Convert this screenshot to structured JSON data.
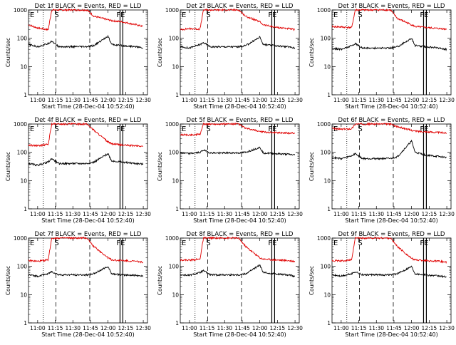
{
  "colors": {
    "events": "#000000",
    "lld": "#e00000",
    "axis": "#000000",
    "background": "#ffffff"
  },
  "chart_data": [
    {
      "type": "line",
      "title": "Det 1f BLACK = Events, RED = LLD",
      "xlabel": "Start Time (28-Dec-04 10:52:40)",
      "ylabel": "Counts/sec",
      "xlim": [
        10.87,
        12.56
      ],
      "ylim": [
        1,
        1000
      ],
      "yscale": "log",
      "x_tick_labels": [
        "11:00",
        "11:15",
        "11:30",
        "11:45",
        "12:00",
        "12:15",
        "12:30"
      ],
      "y_tick_labels": [
        "1",
        "10",
        "100",
        "1000"
      ],
      "markers": {
        "E": 10.87,
        "S": 11.26,
        "FE": 12.17
      },
      "series": [
        {
          "name": "LLD",
          "x": [
            10.87,
            11.0,
            11.15,
            11.2,
            11.3,
            11.7,
            11.8,
            12.0,
            12.05,
            12.2,
            12.4,
            12.5
          ],
          "values": [
            300,
            230,
            200,
            1000,
            1000,
            1000,
            600,
            450,
            420,
            380,
            300,
            260
          ]
        },
        {
          "name": "Events",
          "x": [
            10.87,
            11.0,
            11.15,
            11.2,
            11.3,
            11.7,
            11.8,
            12.0,
            12.05,
            12.2,
            12.4,
            12.5
          ],
          "values": [
            60,
            50,
            65,
            80,
            50,
            50,
            55,
            120,
            60,
            55,
            50,
            45
          ]
        }
      ]
    },
    {
      "type": "line",
      "title": "Det 2f BLACK = Events, RED = LLD",
      "xlabel": "Start Time (28-Dec-04 10:52:40)",
      "ylabel": "Counts/sec",
      "xlim": [
        10.87,
        12.56
      ],
      "ylim": [
        1,
        1000
      ],
      "yscale": "log",
      "x_tick_labels": [
        "11:00",
        "11:15",
        "11:30",
        "11:45",
        "12:00",
        "12:15",
        "12:30"
      ],
      "y_tick_labels": [
        "1",
        "10",
        "100",
        "1000"
      ],
      "markers": {
        "E": 10.87,
        "S": 11.26,
        "FE": 12.17
      },
      "series": [
        {
          "name": "LLD",
          "x": [
            10.87,
            11.0,
            11.15,
            11.2,
            11.3,
            11.7,
            11.8,
            12.0,
            12.05,
            12.2,
            12.4,
            12.5
          ],
          "values": [
            200,
            220,
            210,
            1000,
            1000,
            1000,
            600,
            380,
            300,
            250,
            220,
            200
          ]
        },
        {
          "name": "Events",
          "x": [
            10.87,
            11.0,
            11.15,
            11.2,
            11.3,
            11.7,
            11.8,
            12.0,
            12.05,
            12.2,
            12.4,
            12.5
          ],
          "values": [
            50,
            45,
            60,
            70,
            50,
            50,
            55,
            110,
            60,
            55,
            50,
            45
          ]
        }
      ]
    },
    {
      "type": "line",
      "title": "Det 3f BLACK = Events, RED = LLD",
      "xlabel": "Start Time (28-Dec-04 10:52:40)",
      "ylabel": "Counts/sec",
      "xlim": [
        10.87,
        12.56
      ],
      "ylim": [
        1,
        1000
      ],
      "yscale": "log",
      "x_tick_labels": [
        "11:00",
        "11:15",
        "11:30",
        "11:45",
        "12:00",
        "12:15",
        "12:30"
      ],
      "y_tick_labels": [
        "1",
        "10",
        "100",
        "1000"
      ],
      "markers": {
        "E": 10.87,
        "S": 11.26,
        "FE": 12.17
      },
      "series": [
        {
          "name": "LLD",
          "x": [
            10.87,
            11.0,
            11.15,
            11.2,
            11.3,
            11.7,
            11.8,
            12.0,
            12.05,
            12.2,
            12.4,
            12.5
          ],
          "values": [
            260,
            250,
            240,
            1000,
            1000,
            1000,
            500,
            300,
            260,
            240,
            220,
            210
          ]
        },
        {
          "name": "Events",
          "x": [
            10.87,
            11.0,
            11.15,
            11.2,
            11.3,
            11.7,
            11.8,
            12.0,
            12.05,
            12.2,
            12.4,
            12.5
          ],
          "values": [
            45,
            40,
            55,
            65,
            45,
            45,
            50,
            100,
            55,
            50,
            45,
            40
          ]
        }
      ]
    },
    {
      "type": "line",
      "title": "Det 4f BLACK = Events, RED = LLD",
      "xlabel": "Start Time (28-Dec-04 10:52:40)",
      "ylabel": "Counts/sec",
      "xlim": [
        10.87,
        12.56
      ],
      "ylim": [
        1,
        1000
      ],
      "yscale": "log",
      "x_tick_labels": [
        "11:00",
        "11:15",
        "11:30",
        "11:45",
        "12:00",
        "12:15",
        "12:30"
      ],
      "y_tick_labels": [
        "1",
        "10",
        "100",
        "1000"
      ],
      "markers": {
        "E": 10.87,
        "S": 11.26,
        "FE": 12.17
      },
      "series": [
        {
          "name": "LLD",
          "x": [
            10.87,
            11.0,
            11.15,
            11.2,
            11.3,
            11.7,
            11.8,
            12.0,
            12.05,
            12.2,
            12.4,
            12.5
          ],
          "values": [
            180,
            170,
            190,
            1000,
            1000,
            1000,
            600,
            230,
            200,
            180,
            170,
            160
          ]
        },
        {
          "name": "Events",
          "x": [
            10.87,
            11.0,
            11.15,
            11.2,
            11.3,
            11.7,
            11.8,
            12.0,
            12.05,
            12.2,
            12.4,
            12.5
          ],
          "values": [
            40,
            35,
            45,
            60,
            40,
            40,
            45,
            90,
            50,
            45,
            40,
            38
          ]
        }
      ]
    },
    {
      "type": "line",
      "title": "Det 5f BLACK = Events, RED = LLD",
      "xlabel": "Start Time (28-Dec-04 10:52:40)",
      "ylabel": "Counts/sec",
      "xlim": [
        10.87,
        12.56
      ],
      "ylim": [
        1,
        1000
      ],
      "yscale": "log",
      "x_tick_labels": [
        "11:00",
        "11:15",
        "11:30",
        "11:45",
        "12:00",
        "12:15",
        "12:30"
      ],
      "y_tick_labels": [
        "1",
        "10",
        "100",
        "1000"
      ],
      "markers": {
        "E": 10.87,
        "S": 11.26,
        "FE": 12.17
      },
      "series": [
        {
          "name": "LLD",
          "x": [
            10.87,
            11.0,
            11.15,
            11.2,
            11.3,
            11.7,
            11.8,
            12.0,
            12.05,
            12.2,
            12.4,
            12.5
          ],
          "values": [
            420,
            410,
            430,
            1000,
            1000,
            1000,
            700,
            550,
            520,
            500,
            480,
            470
          ]
        },
        {
          "name": "Events",
          "x": [
            10.87,
            11.0,
            11.15,
            11.2,
            11.3,
            11.7,
            11.8,
            12.0,
            12.05,
            12.2,
            12.4,
            12.5
          ],
          "values": [
            95,
            90,
            100,
            120,
            95,
            95,
            100,
            150,
            95,
            90,
            85,
            80
          ]
        }
      ]
    },
    {
      "type": "line",
      "title": "Det 6f BLACK = Events, RED = LLD",
      "xlabel": "Start Time (28-Dec-04 10:52:40)",
      "ylabel": "Counts/sec",
      "xlim": [
        10.87,
        12.56
      ],
      "ylim": [
        1,
        1000
      ],
      "yscale": "log",
      "x_tick_labels": [
        "11:00",
        "11:15",
        "11:30",
        "11:45",
        "12:00",
        "12:15",
        "12:30"
      ],
      "y_tick_labels": [
        "1",
        "10",
        "100",
        "1000"
      ],
      "markers": {
        "E": 10.87,
        "S": 11.26,
        "FE": 12.17
      },
      "series": [
        {
          "name": "LLD",
          "x": [
            10.87,
            11.0,
            11.15,
            11.2,
            11.3,
            11.7,
            11.8,
            12.0,
            12.05,
            12.2,
            12.4,
            12.5
          ],
          "values": [
            700,
            650,
            680,
            1000,
            1000,
            1000,
            800,
            600,
            560,
            530,
            500,
            480
          ]
        },
        {
          "name": "Events",
          "x": [
            10.87,
            11.0,
            11.15,
            11.2,
            11.3,
            11.7,
            11.8,
            12.0,
            12.05,
            12.2,
            12.4,
            12.5
          ],
          "values": [
            65,
            60,
            75,
            90,
            60,
            60,
            70,
            250,
            100,
            80,
            70,
            65
          ]
        }
      ]
    },
    {
      "type": "line",
      "title": "Det 7f BLACK = Events, RED = LLD",
      "xlabel": "Start Time (28-Dec-04 10:52:40)",
      "ylabel": "Counts/sec",
      "xlim": [
        10.87,
        12.56
      ],
      "ylim": [
        1,
        1000
      ],
      "yscale": "log",
      "x_tick_labels": [
        "11:00",
        "11:15",
        "11:30",
        "11:45",
        "12:00",
        "12:15",
        "12:30"
      ],
      "y_tick_labels": [
        "1",
        "10",
        "100",
        "1000"
      ],
      "markers": {
        "E": 10.87,
        "S": 11.26,
        "FE": 12.17
      },
      "series": [
        {
          "name": "LLD",
          "x": [
            10.87,
            11.0,
            11.15,
            11.2,
            11.3,
            11.7,
            11.8,
            12.0,
            12.05,
            12.2,
            12.4,
            12.5
          ],
          "values": [
            160,
            150,
            170,
            1000,
            1000,
            1000,
            500,
            200,
            170,
            160,
            150,
            140
          ]
        },
        {
          "name": "Events",
          "x": [
            10.87,
            11.0,
            11.15,
            11.2,
            11.3,
            11.7,
            11.8,
            12.0,
            12.05,
            12.2,
            12.4,
            12.5
          ],
          "values": [
            50,
            45,
            55,
            65,
            50,
            50,
            55,
            100,
            55,
            50,
            48,
            45
          ]
        }
      ]
    },
    {
      "type": "line",
      "title": "Det 8f BLACK = Events, RED = LLD",
      "xlabel": "Start Time (28-Dec-04 10:52:40)",
      "ylabel": "Counts/sec",
      "xlim": [
        10.87,
        12.56
      ],
      "ylim": [
        1,
        1000
      ],
      "yscale": "log",
      "x_tick_labels": [
        "11:00",
        "11:15",
        "11:30",
        "11:45",
        "12:00",
        "12:15",
        "12:30"
      ],
      "y_tick_labels": [
        "1",
        "10",
        "100",
        "1000"
      ],
      "markers": {
        "E": 10.87,
        "S": 11.26,
        "FE": 12.17
      },
      "series": [
        {
          "name": "LLD",
          "x": [
            10.87,
            11.0,
            11.15,
            11.2,
            11.3,
            11.7,
            11.8,
            12.0,
            12.05,
            12.2,
            12.4,
            12.5
          ],
          "values": [
            170,
            165,
            180,
            1000,
            1000,
            1000,
            500,
            200,
            180,
            170,
            160,
            150
          ]
        },
        {
          "name": "Events",
          "x": [
            10.87,
            11.0,
            11.15,
            11.2,
            11.3,
            11.7,
            11.8,
            12.0,
            12.05,
            12.2,
            12.4,
            12.5
          ],
          "values": [
            50,
            48,
            60,
            70,
            50,
            50,
            55,
            110,
            60,
            55,
            50,
            45
          ]
        }
      ]
    },
    {
      "type": "line",
      "title": "Det 9f BLACK = Events, RED = LLD",
      "xlabel": "Start Time (28-Dec-04 10:52:40)",
      "ylabel": "Counts/sec",
      "xlim": [
        10.87,
        12.56
      ],
      "ylim": [
        1,
        1000
      ],
      "yscale": "log",
      "x_tick_labels": [
        "11:00",
        "11:15",
        "11:30",
        "11:45",
        "12:00",
        "12:15",
        "12:30"
      ],
      "y_tick_labels": [
        "1",
        "10",
        "100",
        "1000"
      ],
      "markers": {
        "E": 10.87,
        "S": 11.26,
        "FE": 12.17
      },
      "series": [
        {
          "name": "LLD",
          "x": [
            10.87,
            11.0,
            11.15,
            11.2,
            11.3,
            11.7,
            11.8,
            12.0,
            12.05,
            12.2,
            12.4,
            12.5
          ],
          "values": [
            160,
            155,
            170,
            1000,
            1000,
            1000,
            500,
            190,
            170,
            160,
            150,
            140
          ]
        },
        {
          "name": "Events",
          "x": [
            10.87,
            11.0,
            11.15,
            11.2,
            11.3,
            11.7,
            11.8,
            12.0,
            12.05,
            12.2,
            12.4,
            12.5
          ],
          "values": [
            50,
            45,
            55,
            65,
            50,
            50,
            55,
            100,
            55,
            50,
            45,
            42
          ]
        }
      ]
    }
  ]
}
